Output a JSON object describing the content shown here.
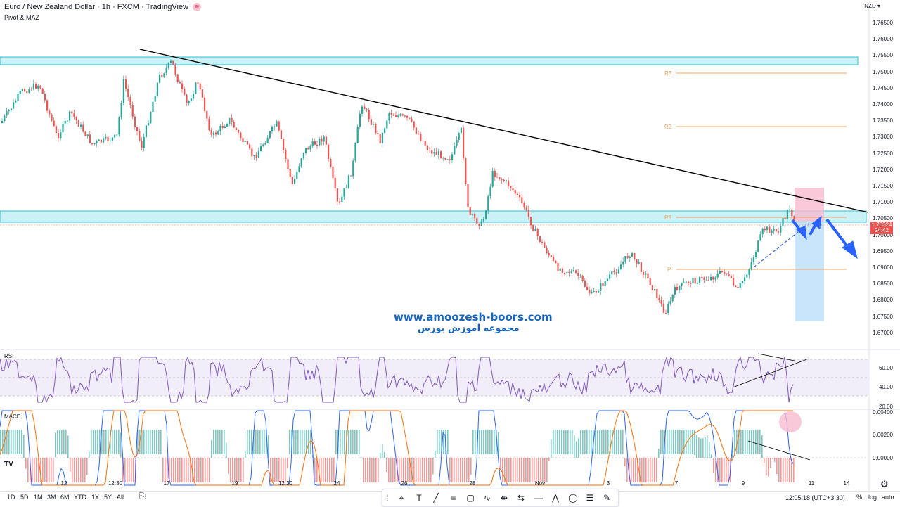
{
  "header": {
    "title": "Euro / New Zealand Dollar · 1h · FXCM · TradingView",
    "subtitle": "Pivot & MAZ",
    "currency": "NZD"
  },
  "price_axis": [
    "1.76500",
    "1.76000",
    "1.75500",
    "1.75000",
    "1.74500",
    "1.74000",
    "1.73500",
    "1.73000",
    "1.72500",
    "1.72000",
    "1.71500",
    "1.71000",
    "1.70500",
    "1.70000",
    "1.69500",
    "1.69000",
    "1.68500",
    "1.68000",
    "1.67500",
    "1.67000"
  ],
  "current_price": {
    "value": "1.70324",
    "countdown": "24:42"
  },
  "pivots": {
    "r3": "R3",
    "r2": "R2",
    "r1": "R1",
    "p": "P"
  },
  "rsi": {
    "label": "RSI",
    "levels": [
      "60.00",
      "40.00",
      "20.00"
    ]
  },
  "macd": {
    "label": "MACD",
    "levels": [
      "0.00400",
      "0.00200",
      "0.00000"
    ]
  },
  "time_axis": [
    "12",
    "12:30",
    "17",
    "19",
    "12:30",
    "24",
    "26",
    "28",
    "Nov",
    "3",
    "7",
    "9",
    "11",
    "14"
  ],
  "watermark": {
    "url": "www.amoozesh-boors.com",
    "persian": "مجموعه آموزش بورس"
  },
  "timeframes": [
    "1D",
    "5D",
    "1M",
    "3M",
    "6M",
    "YTD",
    "1Y",
    "5Y",
    "All"
  ],
  "clock": "12:05:18 (UTC+3:30)",
  "options": {
    "percent": "%",
    "log": "log",
    "auto": "auto"
  },
  "colors": {
    "up": "#26a69a",
    "down": "#ef5350",
    "zone": "#b2ebf2",
    "pivot": "#f7a35c",
    "rsi": "#7e57c2",
    "macd": "#2962ff",
    "signal": "#ff6d00"
  },
  "tools": [
    "price-marker-icon",
    "text-icon",
    "trend-line-icon",
    "fib-icon",
    "rectangle-icon",
    "path-icon",
    "measure-icon",
    "position-icon",
    "horizontal-line-icon",
    "pattern-icon",
    "shape-icon",
    "lines-icon",
    "brush-icon"
  ]
}
